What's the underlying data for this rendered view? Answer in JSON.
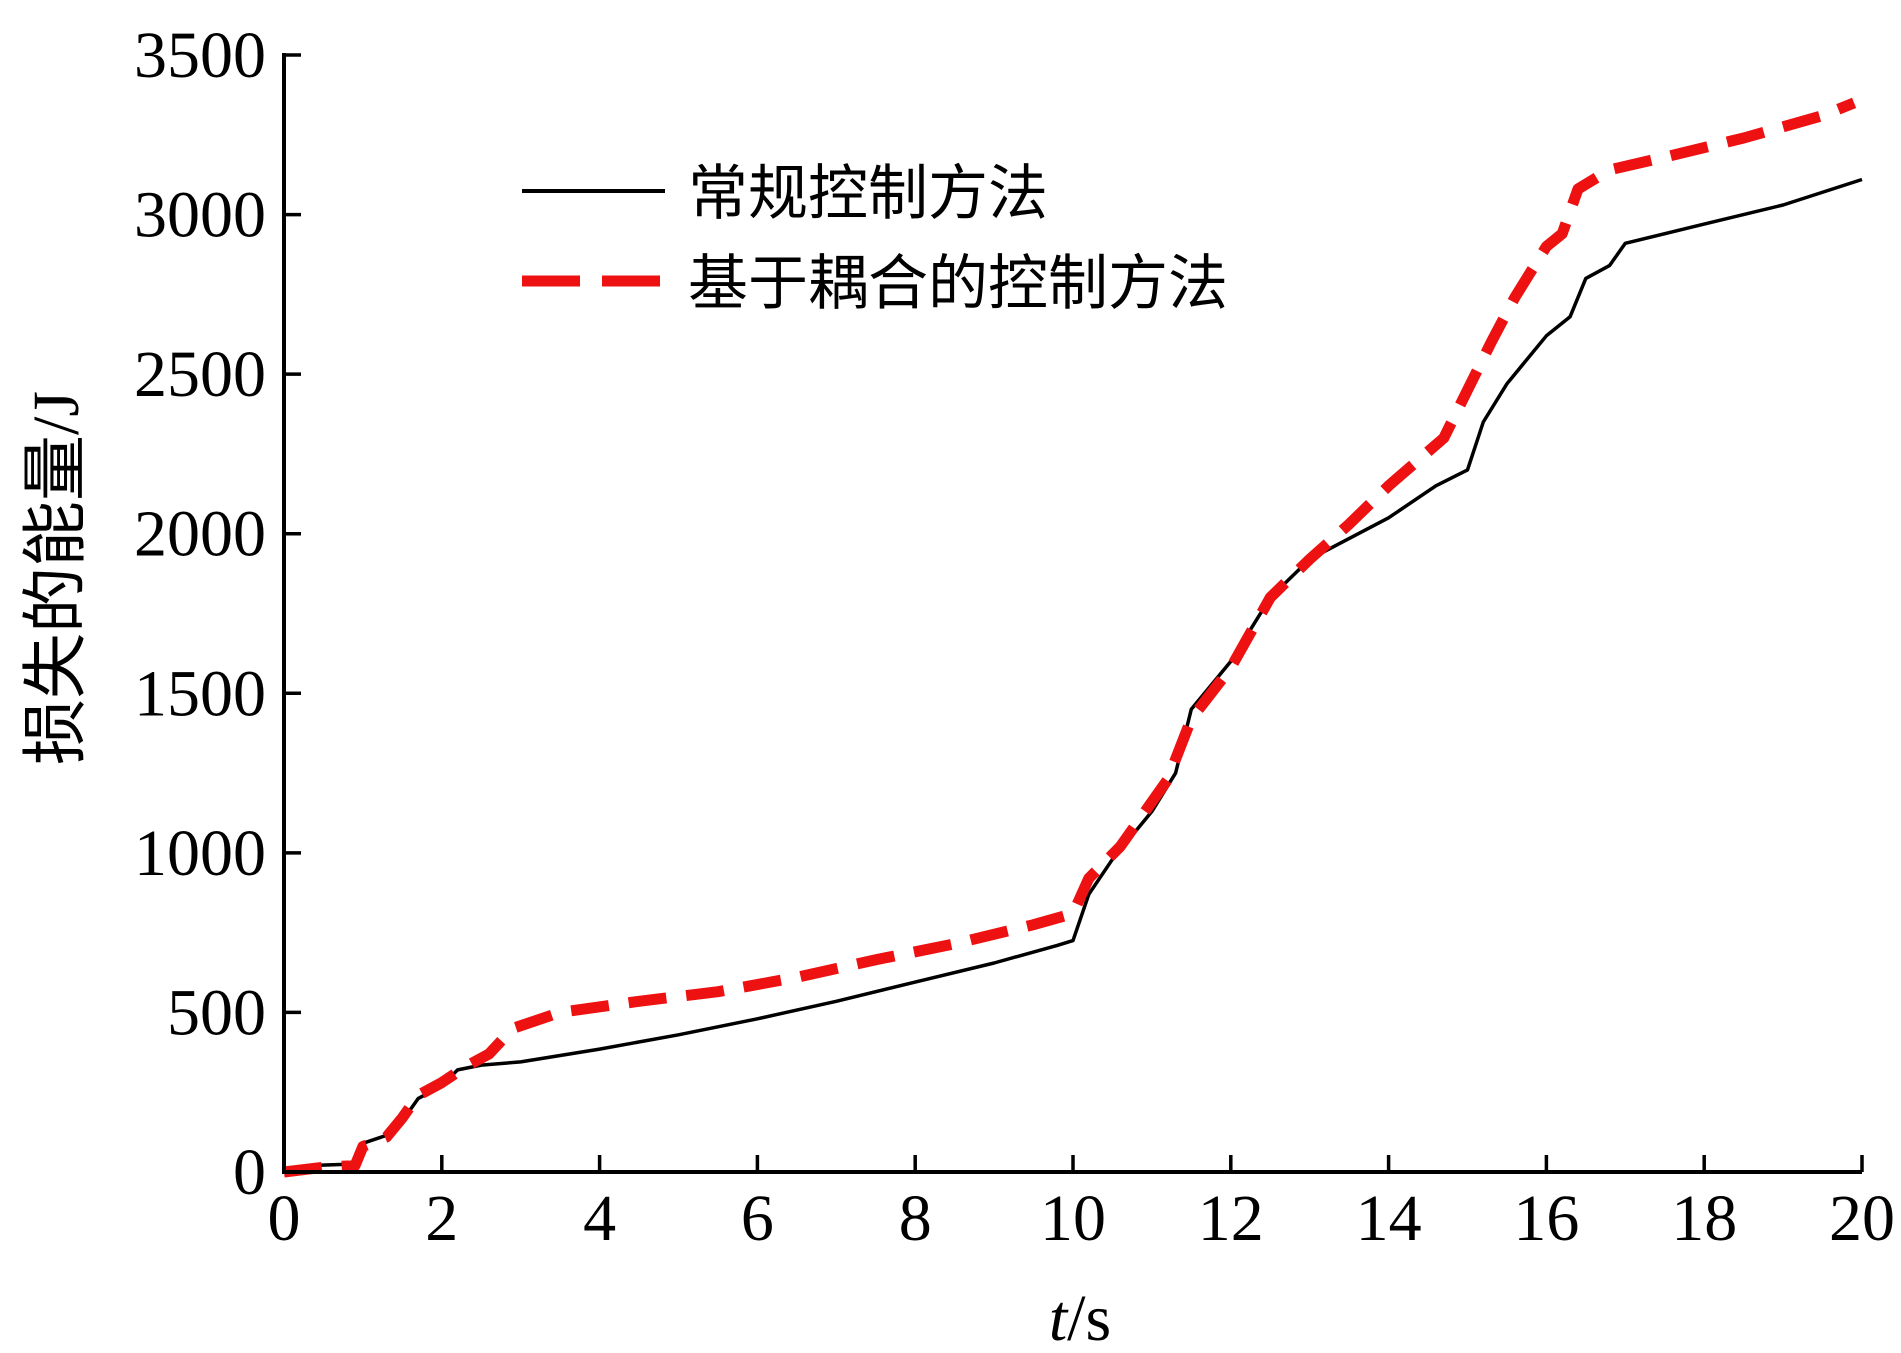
{
  "chart_data": {
    "type": "line",
    "xlabel": {
      "italic": "t",
      "rest": "/s"
    },
    "ylabel": "损失的能量/J",
    "xlim": [
      0,
      20
    ],
    "ylim": [
      0,
      3500
    ],
    "xticks": [
      0,
      2,
      4,
      6,
      8,
      10,
      12,
      14,
      16,
      18,
      20
    ],
    "yticks": [
      0,
      500,
      1000,
      1500,
      2000,
      2500,
      3000,
      3500
    ],
    "grid": false,
    "legend_position": "top-left",
    "series": [
      {
        "name": "常规控制方法",
        "color": "#000000",
        "style": "solid",
        "points": [
          [
            0,
            0
          ],
          [
            0.3,
            20
          ],
          [
            0.9,
            25
          ],
          [
            1.0,
            90
          ],
          [
            1.3,
            115
          ],
          [
            1.5,
            160
          ],
          [
            1.7,
            230
          ],
          [
            2.0,
            270
          ],
          [
            2.2,
            320
          ],
          [
            2.5,
            335
          ],
          [
            3.0,
            345
          ],
          [
            4.0,
            385
          ],
          [
            5.0,
            430
          ],
          [
            6.0,
            480
          ],
          [
            7.0,
            535
          ],
          [
            8.0,
            595
          ],
          [
            9.0,
            655
          ],
          [
            9.8,
            710
          ],
          [
            10.0,
            725
          ],
          [
            10.2,
            870
          ],
          [
            10.5,
            980
          ],
          [
            11.0,
            1130
          ],
          [
            11.3,
            1250
          ],
          [
            11.5,
            1450
          ],
          [
            12.0,
            1600
          ],
          [
            12.5,
            1800
          ],
          [
            13.0,
            1920
          ],
          [
            14.0,
            2050
          ],
          [
            14.6,
            2150
          ],
          [
            15.0,
            2200
          ],
          [
            15.2,
            2350
          ],
          [
            15.5,
            2470
          ],
          [
            16.0,
            2620
          ],
          [
            16.3,
            2680
          ],
          [
            16.5,
            2800
          ],
          [
            16.8,
            2840
          ],
          [
            17.0,
            2910
          ],
          [
            18.0,
            2970
          ],
          [
            19.0,
            3030
          ],
          [
            20.0,
            3110
          ]
        ]
      },
      {
        "name": "基于耦合的控制方法",
        "color": "#ee1111",
        "style": "dashed",
        "points": [
          [
            0,
            0
          ],
          [
            0.5,
            15
          ],
          [
            0.9,
            20
          ],
          [
            1.0,
            80
          ],
          [
            1.3,
            110
          ],
          [
            1.5,
            170
          ],
          [
            1.7,
            240
          ],
          [
            2.0,
            280
          ],
          [
            2.3,
            330
          ],
          [
            2.6,
            370
          ],
          [
            2.9,
            450
          ],
          [
            3.5,
            500
          ],
          [
            4.5,
            535
          ],
          [
            5.5,
            565
          ],
          [
            6.5,
            610
          ],
          [
            7.5,
            665
          ],
          [
            8.5,
            715
          ],
          [
            9.5,
            775
          ],
          [
            10.0,
            810
          ],
          [
            10.2,
            920
          ],
          [
            10.6,
            1020
          ],
          [
            11.2,
            1230
          ],
          [
            11.5,
            1420
          ],
          [
            12.0,
            1580
          ],
          [
            12.5,
            1800
          ],
          [
            13.0,
            1920
          ],
          [
            13.5,
            2030
          ],
          [
            14.0,
            2150
          ],
          [
            14.7,
            2300
          ],
          [
            15.0,
            2450
          ],
          [
            15.3,
            2600
          ],
          [
            15.6,
            2740
          ],
          [
            16.0,
            2900
          ],
          [
            16.2,
            2940
          ],
          [
            16.4,
            3080
          ],
          [
            16.8,
            3140
          ],
          [
            17.5,
            3180
          ],
          [
            18.5,
            3240
          ],
          [
            19.5,
            3310
          ],
          [
            19.9,
            3350
          ]
        ]
      }
    ]
  }
}
